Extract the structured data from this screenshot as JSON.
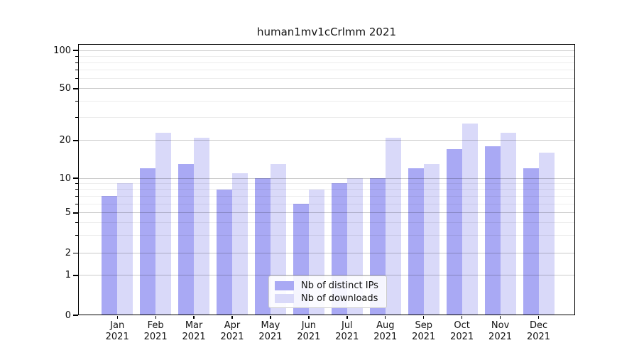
{
  "title": "human1mv1cCrlmm 2021",
  "chart_data": {
    "type": "bar",
    "title": "human1mv1cCrlmm 2021",
    "categories": [
      "Jan 2021",
      "Feb 2021",
      "Mar 2021",
      "Apr 2021",
      "May 2021",
      "Jun 2021",
      "Jul 2021",
      "Aug 2021",
      "Sep 2021",
      "Oct 2021",
      "Nov 2021",
      "Dec 2021"
    ],
    "series": [
      {
        "name": "Nb of distinct IPs",
        "color": "#a9a9f4",
        "values": [
          7,
          12,
          13,
          8,
          10,
          6,
          9,
          10,
          12,
          17,
          18,
          12
        ]
      },
      {
        "name": "Nb of downloads",
        "color": "#d9d9f9",
        "values": [
          9,
          23,
          21,
          11,
          13,
          8,
          10,
          21,
          13,
          27,
          23,
          16
        ]
      }
    ],
    "xlabel": "",
    "ylabel": "",
    "yscale": "symlog",
    "ylim": [
      0,
      112
    ],
    "y_major_ticks": [
      0,
      1,
      2,
      5,
      10,
      20,
      50,
      100
    ],
    "y_minor_ticks": [
      3,
      4,
      6,
      7,
      8,
      9,
      30,
      40,
      60,
      70,
      80,
      90
    ],
    "grid": "on",
    "legend_position": "lower center"
  },
  "legend": {
    "items": [
      {
        "label": "Nb of distinct IPs",
        "color": "#a9a9f4"
      },
      {
        "label": "Nb of downloads",
        "color": "#d9d9f9"
      }
    ]
  },
  "colors": {
    "background": "#ffffff",
    "axis": "#000000",
    "major_grid": "#cccccc",
    "minor_grid": "#ebebeb",
    "text": "#111111"
  }
}
